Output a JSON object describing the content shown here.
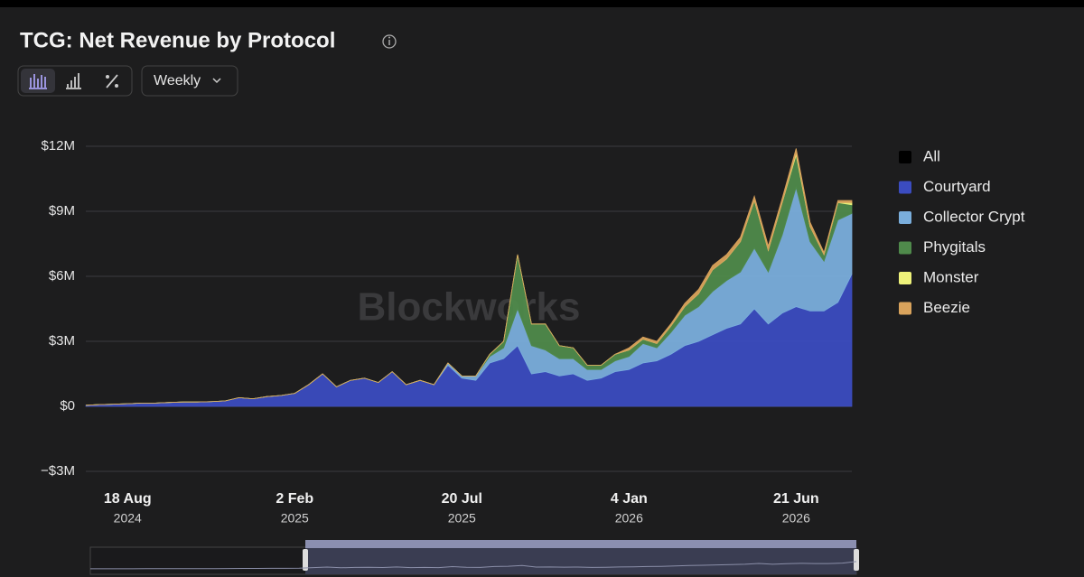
{
  "chart_data": {
    "type": "stacked_area",
    "title": "TCG: Net Revenue by Protocol",
    "interval": "Weekly",
    "watermark": "Blockworks",
    "legend_all": {
      "name": "All",
      "color": "#000000"
    },
    "x": [
      "2024-07-07",
      "2024-07-21",
      "2024-08-04",
      "2024-08-18",
      "2024-09-01",
      "2024-09-15",
      "2024-09-29",
      "2024-10-13",
      "2024-10-27",
      "2024-11-10",
      "2024-11-24",
      "2024-12-08",
      "2024-12-22",
      "2025-01-05",
      "2025-01-19",
      "2025-02-02",
      "2025-02-16",
      "2025-03-02",
      "2025-03-16",
      "2025-03-30",
      "2025-04-13",
      "2025-04-27",
      "2025-05-11",
      "2025-05-25",
      "2025-06-08",
      "2025-06-22",
      "2025-07-06",
      "2025-07-20",
      "2025-08-03",
      "2025-08-17",
      "2025-08-31",
      "2025-09-14",
      "2025-09-28",
      "2025-10-12",
      "2025-10-26",
      "2025-11-09",
      "2025-11-23",
      "2025-12-07",
      "2025-12-21",
      "2026-01-04",
      "2026-01-18",
      "2026-02-01",
      "2026-02-15",
      "2026-03-01",
      "2026-03-15",
      "2026-03-29",
      "2026-04-12",
      "2026-04-26",
      "2026-05-10",
      "2026-05-24",
      "2026-06-07",
      "2026-06-21",
      "2026-07-05",
      "2026-07-19",
      "2026-08-02",
      "2026-08-16"
    ],
    "xlim": [
      "2024-07-07",
      "2026-08-16"
    ],
    "xticks": [
      {
        "value": "2024-08-18",
        "label": "18 Aug",
        "year": "2024"
      },
      {
        "value": "2025-02-02",
        "label": "2 Feb",
        "year": "2025"
      },
      {
        "value": "2025-07-20",
        "label": "20 Jul",
        "year": "2025"
      },
      {
        "value": "2026-01-04",
        "label": "4 Jan",
        "year": "2026"
      },
      {
        "value": "2026-06-21",
        "label": "21 Jun",
        "year": "2026"
      }
    ],
    "ylim": [
      -3000000,
      12000000
    ],
    "yticks": [
      {
        "value": 12000000,
        "label": "$12M"
      },
      {
        "value": 9000000,
        "label": "$9M"
      },
      {
        "value": 6000000,
        "label": "$6M"
      },
      {
        "value": 3000000,
        "label": "$3M"
      },
      {
        "value": 0,
        "label": "$0"
      },
      {
        "value": -3000000,
        "label": "−$3M"
      }
    ],
    "grid": true,
    "legend_position": "right",
    "series": [
      {
        "name": "Courtyard",
        "color": "#3b4cc0",
        "values": [
          50000,
          80000,
          100000,
          120000,
          150000,
          150000,
          180000,
          200000,
          200000,
          220000,
          250000,
          400000,
          350000,
          450000,
          500000,
          600000,
          1000000,
          1500000,
          900000,
          1200000,
          1300000,
          1100000,
          1600000,
          1000000,
          1200000,
          1000000,
          1900000,
          1300000,
          1200000,
          2000000,
          2200000,
          2800000,
          1500000,
          1600000,
          1400000,
          1500000,
          1200000,
          1300000,
          1600000,
          1700000,
          2000000,
          2100000,
          2400000,
          2800000,
          3000000,
          3300000,
          3600000,
          3800000,
          4500000,
          3800000,
          4300000,
          4600000,
          4400000,
          4400000,
          4800000,
          6100000
        ]
      },
      {
        "name": "Collector Crypt",
        "color": "#7aaedc",
        "values": [
          0,
          0,
          0,
          0,
          0,
          0,
          0,
          0,
          0,
          0,
          0,
          0,
          0,
          0,
          0,
          0,
          0,
          0,
          0,
          0,
          0,
          0,
          0,
          0,
          0,
          0,
          100000,
          100000,
          200000,
          300000,
          500000,
          1700000,
          1300000,
          1000000,
          800000,
          700000,
          500000,
          400000,
          500000,
          600000,
          900000,
          600000,
          1000000,
          1400000,
          1600000,
          2000000,
          2200000,
          2400000,
          2800000,
          2400000,
          3600000,
          5500000,
          3200000,
          2300000,
          3800000,
          2800000
        ]
      },
      {
        "name": "Phygitals",
        "color": "#4f8a4b",
        "values": [
          0,
          0,
          0,
          0,
          0,
          0,
          0,
          0,
          0,
          0,
          0,
          0,
          0,
          0,
          0,
          0,
          0,
          0,
          0,
          0,
          0,
          0,
          0,
          0,
          0,
          0,
          0,
          0,
          0,
          100000,
          300000,
          2500000,
          1000000,
          1200000,
          600000,
          500000,
          200000,
          200000,
          300000,
          300000,
          200000,
          200000,
          300000,
          400000,
          600000,
          1000000,
          1000000,
          1400000,
          2200000,
          1000000,
          1500000,
          1500000,
          700000,
          300000,
          800000,
          400000
        ]
      },
      {
        "name": "Monster",
        "color": "#eef27a",
        "values": [
          0,
          0,
          0,
          0,
          0,
          0,
          0,
          0,
          0,
          0,
          0,
          0,
          0,
          0,
          0,
          0,
          0,
          0,
          0,
          0,
          0,
          0,
          0,
          0,
          0,
          0,
          0,
          0,
          0,
          0,
          0,
          0,
          0,
          0,
          0,
          0,
          0,
          0,
          0,
          0,
          0,
          0,
          0,
          0,
          0,
          0,
          0,
          0,
          0,
          0,
          0,
          100000,
          0,
          0,
          0,
          100000
        ]
      },
      {
        "name": "Beezie",
        "color": "#d9a35c",
        "values": [
          0,
          0,
          0,
          0,
          0,
          0,
          0,
          0,
          0,
          0,
          0,
          0,
          0,
          0,
          0,
          0,
          0,
          0,
          0,
          0,
          0,
          0,
          0,
          0,
          0,
          0,
          0,
          0,
          0,
          0,
          0,
          0,
          0,
          0,
          0,
          0,
          0,
          0,
          0,
          100000,
          100000,
          100000,
          100000,
          150000,
          200000,
          200000,
          200000,
          200000,
          200000,
          200000,
          200000,
          200000,
          200000,
          100000,
          100000,
          100000
        ]
      }
    ]
  }
}
